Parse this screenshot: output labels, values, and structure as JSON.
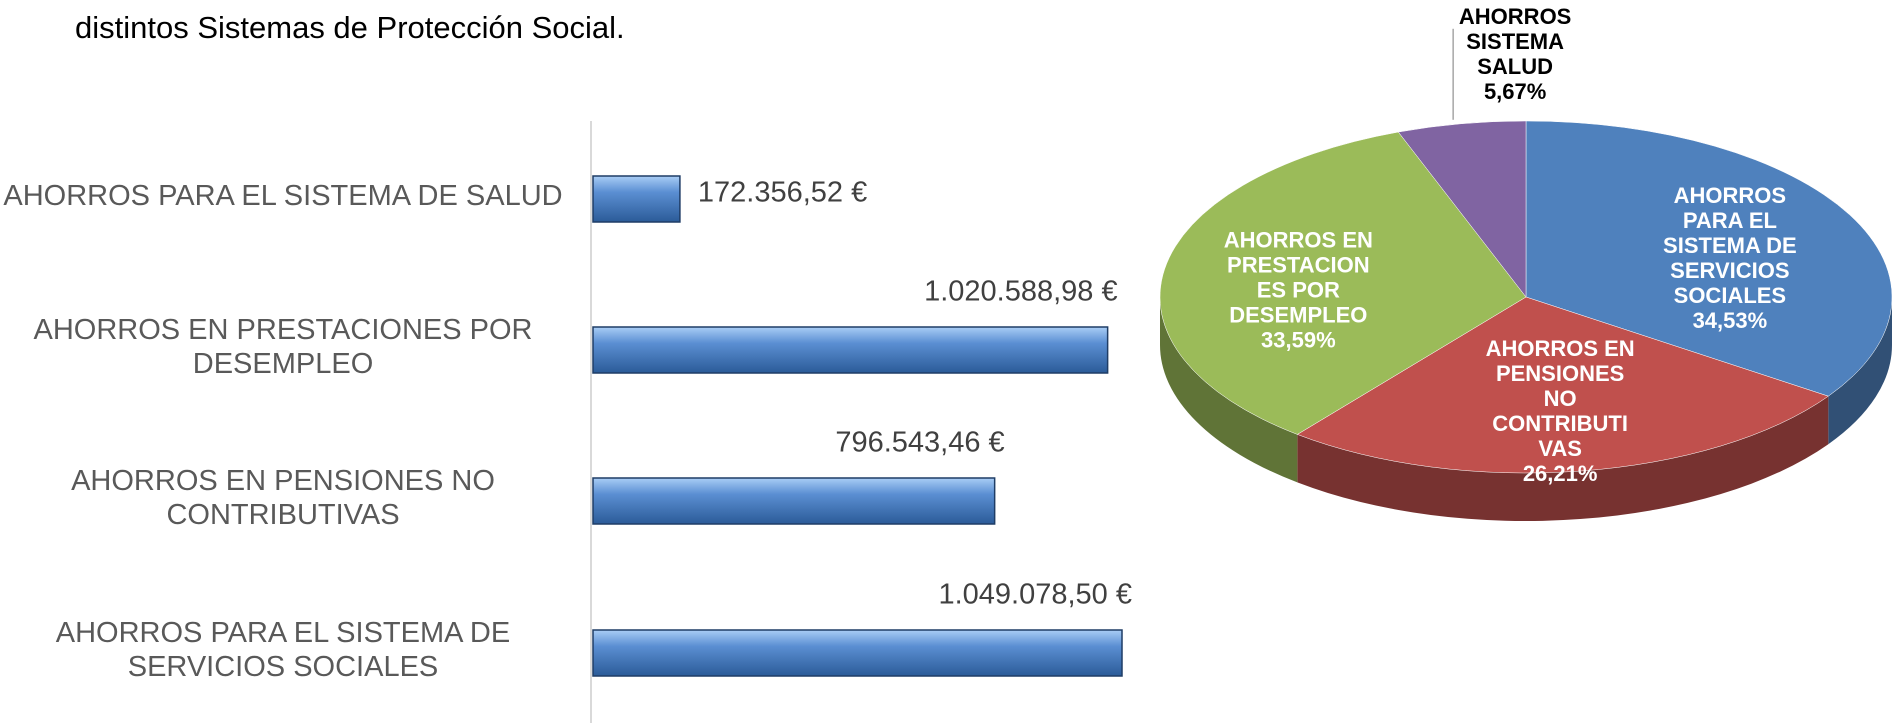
{
  "text": "distintos Sistemas de Protección Social.",
  "chart_data": [
    {
      "type": "bar",
      "categories": [
        "AHORROS PARA EL SISTEMA DE SALUD",
        "AHORROS EN PRESTACIONES POR DESEMPLEO",
        "AHORROS EN PENSIONES NO CONTRIBUTIVAS",
        "AHORROS PARA EL SISTEMA DE SERVICIOS SOCIALES"
      ],
      "values": [
        172356.52,
        1020588.98,
        796543.46,
        1049078.5
      ],
      "value_labels": [
        "172.356,52 €",
        "1.020.588,98 €",
        "796.543,46 €",
        "1.049.078,50 €"
      ],
      "color": "#4f81bd"
    },
    {
      "type": "pie",
      "categories": [
        "AHORROS PARA EL SISTEMA DE SERVICIOS SOCIALES",
        "AHORROS EN PENSIONES NO CONTRIBUTIVAS",
        "AHORROS EN PRESTACIONES POR DESEMPLEO",
        "AHORROS SISTEMA SALUD"
      ],
      "values": [
        34.53,
        26.21,
        33.59,
        5.67
      ],
      "value_labels": [
        "34,53%",
        "26,21%",
        "33,59%",
        "5,67%"
      ],
      "colors": [
        "#4f81bd",
        "#c0504d",
        "#9bbb59",
        "#8064a2"
      ]
    }
  ]
}
